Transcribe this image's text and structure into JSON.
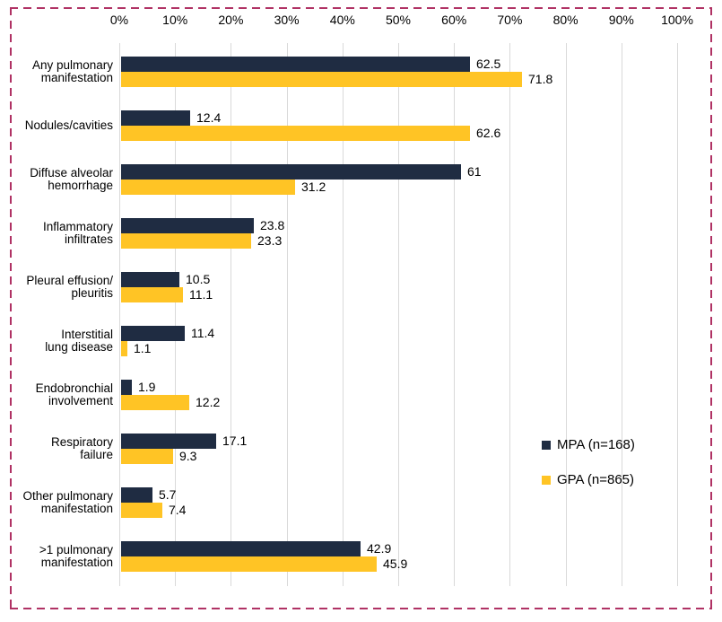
{
  "frame": {
    "border_color": "#B03264"
  },
  "colors": {
    "mpa_bar": "#1F2C42",
    "gpa_bar": "#FFC425",
    "gridline": "#D9D9D9",
    "text": "#000000",
    "background": "#FFFFFF"
  },
  "chart_data": {
    "type": "bar",
    "orientation": "horizontal",
    "title": "",
    "xlabel": "",
    "ylabel": "",
    "grid": true,
    "value_labels": true,
    "legend_position": "right",
    "x_axis": {
      "position": "top",
      "min": 0,
      "max": 100,
      "tick_labels": [
        "0%",
        "10%",
        "20%",
        "30%",
        "40%",
        "50%",
        "60%",
        "70%",
        "80%",
        "90%",
        "100%"
      ]
    },
    "categories": [
      "Any pulmonary\nmanifestation",
      "Nodules/cavities",
      "Diffuse alveolar\nhemorrhage",
      "Inflammatory\ninfiltrates",
      "Pleural effusion/\npleuritis",
      "Interstitial\nlung disease",
      "Endobronchial\ninvolvement",
      "Respiratory\nfailure",
      "Other pulmonary\nmanifestation",
      ">1 pulmonary\nmanifestation"
    ],
    "series": [
      {
        "name": "MPA (n=168)",
        "color": "#1F2C42",
        "values": [
          62.5,
          12.4,
          61,
          23.8,
          10.5,
          11.4,
          1.9,
          17.1,
          5.7,
          42.9
        ]
      },
      {
        "name": "GPA (n=865)",
        "color": "#FFC425",
        "values": [
          71.8,
          62.6,
          31.2,
          23.3,
          11.1,
          1.1,
          12.2,
          9.3,
          7.4,
          45.9
        ]
      }
    ]
  },
  "legend": {
    "items": [
      {
        "label": "MPA (n=168)"
      },
      {
        "label": "GPA (n=865)"
      }
    ]
  }
}
